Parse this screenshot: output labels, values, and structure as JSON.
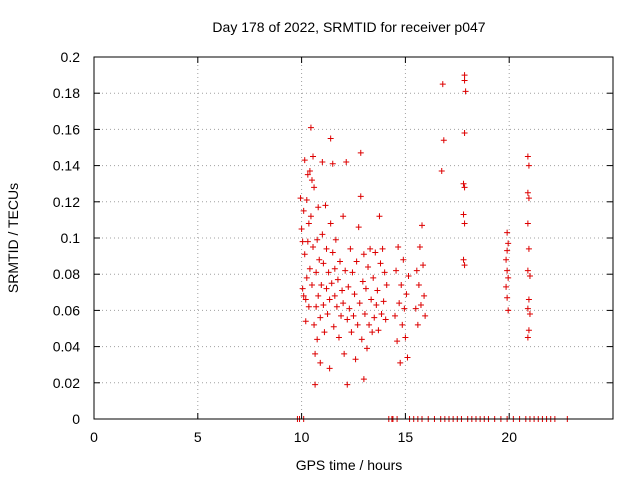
{
  "chart_data": {
    "type": "scatter",
    "title": "Day 178 of 2022, SRMTID for receiver p047",
    "xlabel": "GPS time / hours",
    "ylabel": "SRMTID / TECUs",
    "xlim": [
      0,
      25
    ],
    "ylim": [
      0,
      0.2
    ],
    "x_ticks": [
      0,
      5,
      10,
      15,
      20
    ],
    "x_tick_labels": [
      "0",
      "5",
      "10",
      "15",
      "20"
    ],
    "y_ticks": [
      0,
      0.02,
      0.04,
      0.06,
      0.08,
      0.1,
      0.12,
      0.14,
      0.16,
      0.18,
      0.2
    ],
    "y_tick_labels": [
      "0",
      "0.02",
      "0.04",
      "0.06",
      "0.08",
      "0.1",
      "0.12",
      "0.14",
      "0.16",
      "0.18",
      "0.2"
    ],
    "grid": true,
    "marker": "+",
    "color": "#dd0000",
    "series": [
      {
        "name": "SRMTID",
        "points": [
          [
            9.95,
            0.122
          ],
          [
            10.0,
            0.105
          ],
          [
            10.05,
            0.098
          ],
          [
            10.05,
            0.072
          ],
          [
            10.1,
            0.068
          ],
          [
            10.1,
            0.115
          ],
          [
            10.15,
            0.143
          ],
          [
            10.15,
            0.091
          ],
          [
            10.2,
            0.066
          ],
          [
            10.2,
            0.054
          ],
          [
            10.25,
            0.121
          ],
          [
            10.25,
            0.078
          ],
          [
            10.3,
            0.098
          ],
          [
            10.3,
            0.135
          ],
          [
            10.35,
            0.108
          ],
          [
            10.35,
            0.062
          ],
          [
            10.4,
            0.137
          ],
          [
            10.4,
            0.083
          ],
          [
            10.45,
            0.161
          ],
          [
            10.45,
            0.112
          ],
          [
            10.5,
            0.132
          ],
          [
            10.5,
            0.074
          ],
          [
            10.55,
            0.145
          ],
          [
            10.55,
            0.095
          ],
          [
            10.6,
            0.128
          ],
          [
            10.6,
            0.052
          ],
          [
            10.65,
            0.019
          ],
          [
            10.65,
            0.036
          ],
          [
            10.7,
            0.062
          ],
          [
            10.7,
            0.081
          ],
          [
            10.75,
            0.044
          ],
          [
            10.75,
            0.099
          ],
          [
            10.8,
            0.117
          ],
          [
            10.8,
            0.068
          ],
          [
            10.85,
            0.088
          ],
          [
            10.9,
            0.056
          ],
          [
            10.9,
            0.031
          ],
          [
            10.95,
            0.074
          ],
          [
            11.0,
            0.142
          ],
          [
            11.0,
            0.102
          ],
          [
            11.05,
            0.063
          ],
          [
            11.05,
            0.086
          ],
          [
            11.1,
            0.048
          ],
          [
            11.15,
            0.118
          ],
          [
            11.2,
            0.072
          ],
          [
            11.2,
            0.094
          ],
          [
            11.25,
            0.058
          ],
          [
            11.3,
            0.081
          ],
          [
            11.35,
            0.066
          ],
          [
            11.35,
            0.028
          ],
          [
            11.4,
            0.155
          ],
          [
            11.4,
            0.108
          ],
          [
            11.45,
            0.075
          ],
          [
            11.5,
            0.141
          ],
          [
            11.5,
            0.092
          ],
          [
            11.55,
            0.051
          ],
          [
            11.6,
            0.083
          ],
          [
            11.6,
            0.068
          ],
          [
            11.65,
            0.099
          ],
          [
            11.7,
            0.062
          ],
          [
            11.75,
            0.077
          ],
          [
            11.8,
            0.045
          ],
          [
            11.85,
            0.087
          ],
          [
            11.9,
            0.057
          ],
          [
            11.95,
            0.071
          ],
          [
            12.0,
            0.112
          ],
          [
            12.0,
            0.064
          ],
          [
            12.05,
            0.036
          ],
          [
            12.1,
            0.082
          ],
          [
            12.15,
            0.142
          ],
          [
            12.2,
            0.055
          ],
          [
            12.2,
            0.019
          ],
          [
            12.25,
            0.073
          ],
          [
            12.3,
            0.061
          ],
          [
            12.35,
            0.094
          ],
          [
            12.4,
            0.048
          ],
          [
            12.45,
            0.081
          ],
          [
            12.5,
            0.057
          ],
          [
            12.55,
            0.069
          ],
          [
            12.6,
            0.033
          ],
          [
            12.65,
            0.087
          ],
          [
            12.7,
            0.052
          ],
          [
            12.75,
            0.106
          ],
          [
            12.8,
            0.064
          ],
          [
            12.85,
            0.123
          ],
          [
            12.85,
            0.147
          ],
          [
            12.9,
            0.044
          ],
          [
            12.95,
            0.076
          ],
          [
            13.0,
            0.022
          ],
          [
            13.0,
            0.091
          ],
          [
            13.05,
            0.058
          ],
          [
            13.1,
            0.072
          ],
          [
            13.15,
            0.039
          ],
          [
            13.2,
            0.084
          ],
          [
            13.25,
            0.052
          ],
          [
            13.3,
            0.094
          ],
          [
            13.35,
            0.066
          ],
          [
            13.4,
            0.048
          ],
          [
            13.45,
            0.078
          ],
          [
            13.5,
            0.056
          ],
          [
            13.55,
            0.092
          ],
          [
            13.6,
            0.063
          ],
          [
            13.65,
            0.071
          ],
          [
            13.7,
            0.049
          ],
          [
            13.75,
            0.112
          ],
          [
            13.8,
            0.086
          ],
          [
            13.85,
            0.058
          ],
          [
            13.9,
            0.094
          ],
          [
            13.95,
            0.065
          ],
          [
            14.0,
            0.081
          ],
          [
            14.05,
            0.055
          ],
          [
            14.1,
            0.074
          ],
          [
            14.5,
            0.057
          ],
          [
            14.55,
            0.082
          ],
          [
            14.6,
            0.043
          ],
          [
            14.65,
            0.095
          ],
          [
            14.7,
            0.064
          ],
          [
            14.75,
            0.031
          ],
          [
            14.8,
            0.074
          ],
          [
            14.85,
            0.052
          ],
          [
            14.9,
            0.088
          ],
          [
            14.95,
            0.061
          ],
          [
            15.0,
            0.045
          ],
          [
            15.05,
            0.069
          ],
          [
            15.1,
            0.034
          ],
          [
            15.15,
            0.079
          ],
          [
            15.5,
            0.061
          ],
          [
            15.55,
            0.082
          ],
          [
            15.6,
            0.052
          ],
          [
            15.65,
            0.074
          ],
          [
            15.7,
            0.095
          ],
          [
            15.75,
            0.063
          ],
          [
            15.8,
            0.107
          ],
          [
            15.85,
            0.085
          ],
          [
            15.9,
            0.068
          ],
          [
            15.95,
            0.057
          ],
          [
            16.8,
            0.185
          ],
          [
            16.85,
            0.154
          ],
          [
            16.75,
            0.137
          ],
          [
            17.85,
            0.19
          ],
          [
            17.85,
            0.187
          ],
          [
            17.9,
            0.181
          ],
          [
            17.85,
            0.158
          ],
          [
            17.8,
            0.13
          ],
          [
            17.85,
            0.128
          ],
          [
            17.8,
            0.113
          ],
          [
            17.85,
            0.108
          ],
          [
            17.8,
            0.088
          ],
          [
            17.85,
            0.085
          ],
          [
            19.9,
            0.103
          ],
          [
            19.95,
            0.097
          ],
          [
            19.9,
            0.093
          ],
          [
            19.85,
            0.088
          ],
          [
            19.9,
            0.082
          ],
          [
            19.95,
            0.078
          ],
          [
            19.85,
            0.073
          ],
          [
            19.9,
            0.067
          ],
          [
            19.95,
            0.06
          ],
          [
            20.9,
            0.145
          ],
          [
            20.95,
            0.14
          ],
          [
            20.9,
            0.125
          ],
          [
            20.95,
            0.122
          ],
          [
            20.9,
            0.108
          ],
          [
            20.95,
            0.094
          ],
          [
            20.9,
            0.082
          ],
          [
            21.0,
            0.079
          ],
          [
            20.95,
            0.066
          ],
          [
            20.9,
            0.061
          ],
          [
            21.0,
            0.058
          ],
          [
            20.95,
            0.049
          ],
          [
            20.9,
            0.045
          ],
          [
            9.8,
            0.0
          ],
          [
            9.9,
            0.0
          ],
          [
            10.1,
            0.0
          ],
          [
            14.2,
            0.0
          ],
          [
            14.35,
            0.0
          ],
          [
            14.4,
            0.0
          ],
          [
            14.6,
            0.0
          ],
          [
            15.2,
            0.0
          ],
          [
            15.4,
            0.0
          ],
          [
            15.6,
            0.0
          ],
          [
            15.8,
            0.0
          ],
          [
            16.1,
            0.0
          ],
          [
            16.4,
            0.0
          ],
          [
            16.7,
            0.0
          ],
          [
            16.9,
            0.0
          ],
          [
            17.1,
            0.0
          ],
          [
            17.3,
            0.0
          ],
          [
            17.5,
            0.0
          ],
          [
            17.7,
            0.0
          ],
          [
            18.0,
            0.0
          ],
          [
            18.2,
            0.0
          ],
          [
            18.4,
            0.0
          ],
          [
            18.6,
            0.0
          ],
          [
            18.8,
            0.0
          ],
          [
            19.0,
            0.0
          ],
          [
            19.3,
            0.0
          ],
          [
            19.6,
            0.0
          ],
          [
            19.9,
            0.0
          ],
          [
            20.2,
            0.0
          ],
          [
            20.5,
            0.0
          ],
          [
            20.8,
            0.0
          ],
          [
            21.0,
            0.0
          ],
          [
            21.2,
            0.0
          ],
          [
            21.4,
            0.0
          ],
          [
            21.6,
            0.0
          ],
          [
            21.8,
            0.0
          ],
          [
            22.0,
            0.0
          ],
          [
            22.2,
            0.0
          ],
          [
            22.8,
            0.0
          ]
        ]
      }
    ]
  }
}
